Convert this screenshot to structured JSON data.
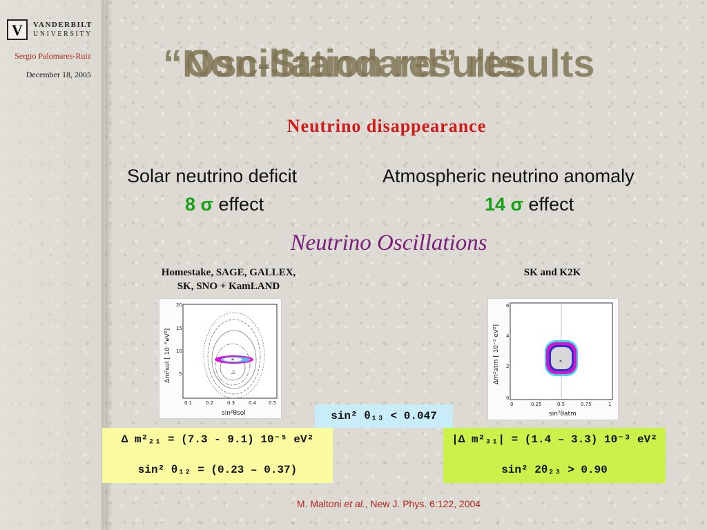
{
  "logo": {
    "line1": "VANDERBILT",
    "line2": "UNIVERSITY"
  },
  "author": "Sergio Palomares-Ruiz",
  "date": "December 18, 2005",
  "title": {
    "layer_a": "“Non-Standard” results",
    "layer_b": "Oscillation results"
  },
  "subtitle": "Neutrino disappearance",
  "solar": {
    "heading": "Solar neutrino deficit",
    "significance": "8 σ",
    "effect_word": "effect",
    "experiments": [
      "Homestake, SAGE, GALLEX,",
      "SK, SNO + KamLAND"
    ],
    "plot": {
      "y_ticks": [
        "20",
        "15",
        "10",
        "5"
      ],
      "x_ticks": [
        "0.1",
        "0.2",
        "0.3",
        "0.4",
        "0.5"
      ],
      "y_label": "Δm²sol [ 10⁻⁵eV²]",
      "x_label": "sin²θsol"
    },
    "box": {
      "line1": "∆ m²₂₁ = (7.3 - 9.1) 10⁻⁵ eV²",
      "line2": "sin² θ₁₂ = (0.23 – 0.37)"
    }
  },
  "atmospheric": {
    "heading": "Atmospheric neutrino anomaly",
    "significance": "14 σ",
    "effect_word": "effect",
    "experiments": [
      "SK and K2K"
    ],
    "plot": {
      "y_ticks": [
        "6",
        "4",
        "2",
        "0"
      ],
      "x_ticks": [
        "0",
        "0.25",
        "0.5",
        "0.75",
        "1"
      ],
      "y_label": "Δm²atm [ 10⁻³ eV²]",
      "x_label": "sin²θatm"
    },
    "box": {
      "line1": "|∆ m²₃₁| = (1.4 – 3.3) 10⁻³ eV²",
      "line2": "sin² 2θ₂₃  >  0.90"
    }
  },
  "oscillations": "Neutrino Oscillations",
  "theta13_box": "sin² θ₁₃ < 0.047",
  "citation": {
    "author": "M. Maltoni ",
    "etal": "et al.",
    "ref": ", New J. Phys. 6:122, 2004"
  },
  "colors": {
    "title": "#7d7352",
    "subtitle": "#d21818",
    "significance": "#18a018",
    "oscillations": "#7a1c7a",
    "box_left": "#fafaa0",
    "box_mid": "#c8ecf8",
    "box_right": "#caf24a"
  }
}
